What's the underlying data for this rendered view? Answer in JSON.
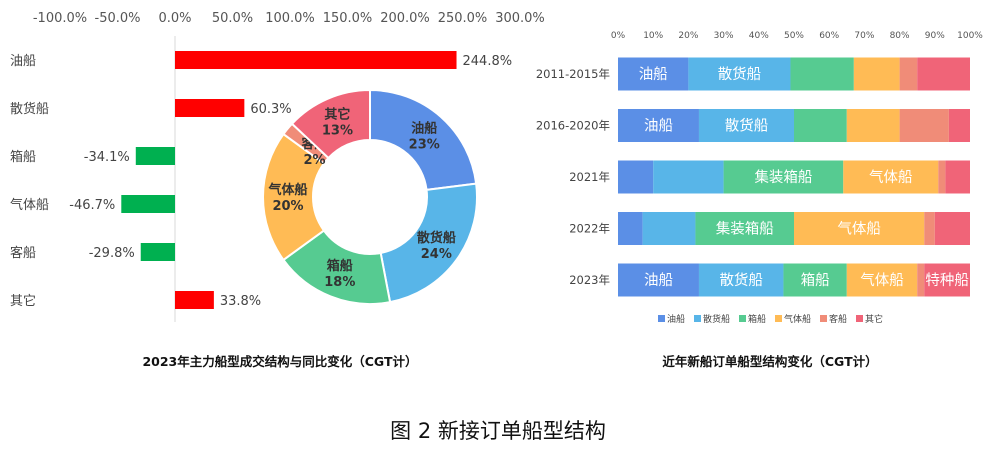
{
  "figure_caption": "图 2 新接订单船型结构",
  "charts_meta": {
    "left_title": "2023年主力船型成交结构与同比变化（CGT计）",
    "right_title": "近年新船订单船型结构变化（CGT计）"
  },
  "colors": {
    "positive_bar": "#ff0000",
    "negative_bar": "#00b050",
    "oil": "#5b8fe6",
    "bulk": "#58b5e8",
    "container": "#56cb91",
    "gas": "#ffbb55",
    "passenger": "#f08c78",
    "other": "#f06478"
  },
  "chart_data": [
    {
      "type": "bar",
      "orientation": "horizontal",
      "title": "2023年主力船型成交结构与同比变化（CGT计）",
      "categories": [
        "油船",
        "散货船",
        "箱船",
        "气体船",
        "客船",
        "其它"
      ],
      "values": [
        244.8,
        60.3,
        -34.1,
        -46.7,
        -29.8,
        33.8
      ],
      "value_labels": [
        "244.8%",
        "60.3%",
        "-34.1%",
        "-46.7%",
        "-29.8%",
        "33.8%"
      ],
      "xlim": [
        -100,
        300
      ],
      "x_ticks": [
        -100,
        -50,
        0,
        50,
        100,
        150,
        200,
        250,
        300
      ],
      "x_tick_labels": [
        "-100.0%",
        "-50.0%",
        "0.0%",
        "50.0%",
        "100.0%",
        "150.0%",
        "200.0%",
        "250.0%",
        "300.0%"
      ],
      "axis_position": "top"
    },
    {
      "type": "pie",
      "variant": "donut",
      "categories": [
        "油船",
        "散货船",
        "箱船",
        "气体船",
        "客船",
        "其它"
      ],
      "values": [
        23,
        24,
        18,
        20,
        2,
        13
      ],
      "value_labels": [
        "23%",
        "24%",
        "18%",
        "20%",
        "2%",
        "13%"
      ]
    },
    {
      "type": "bar",
      "orientation": "horizontal",
      "stacked": true,
      "percent": true,
      "title": "近年新船订单船型结构变化（CGT计）",
      "categories": [
        "2011-2015年",
        "2016-2020年",
        "2021年",
        "2022年",
        "2023年"
      ],
      "x_ticks": [
        0,
        10,
        20,
        30,
        40,
        50,
        60,
        70,
        80,
        90,
        100
      ],
      "x_tick_labels": [
        "0%",
        "10%",
        "20%",
        "30%",
        "40%",
        "50%",
        "60%",
        "70%",
        "80%",
        "90%",
        "100%"
      ],
      "legend_position": "bottom",
      "series": [
        {
          "name": "油船",
          "values": [
            20,
            23,
            10,
            7,
            23
          ]
        },
        {
          "name": "散货船",
          "values": [
            29,
            27,
            20,
            15,
            24
          ]
        },
        {
          "name": "箱船",
          "values": [
            18,
            15,
            34,
            28,
            18
          ]
        },
        {
          "name": "气体船",
          "values": [
            13,
            15,
            27,
            37,
            20
          ]
        },
        {
          "name": "客船",
          "values": [
            5,
            14,
            2,
            3,
            2
          ]
        },
        {
          "name": "其它",
          "values": [
            15,
            6,
            7,
            10,
            13
          ]
        }
      ],
      "segment_labels": [
        [
          "油船",
          "散货船",
          "",
          "",
          "",
          ""
        ],
        [
          "油船",
          "散货船",
          "",
          "",
          "",
          ""
        ],
        [
          "",
          "",
          "集装箱船",
          "气体船",
          "",
          ""
        ],
        [
          "",
          "",
          "集装箱船",
          "气体船",
          "",
          ""
        ],
        [
          "油船",
          "散货船",
          "箱船",
          "气体船",
          "",
          "特种船"
        ]
      ]
    }
  ]
}
